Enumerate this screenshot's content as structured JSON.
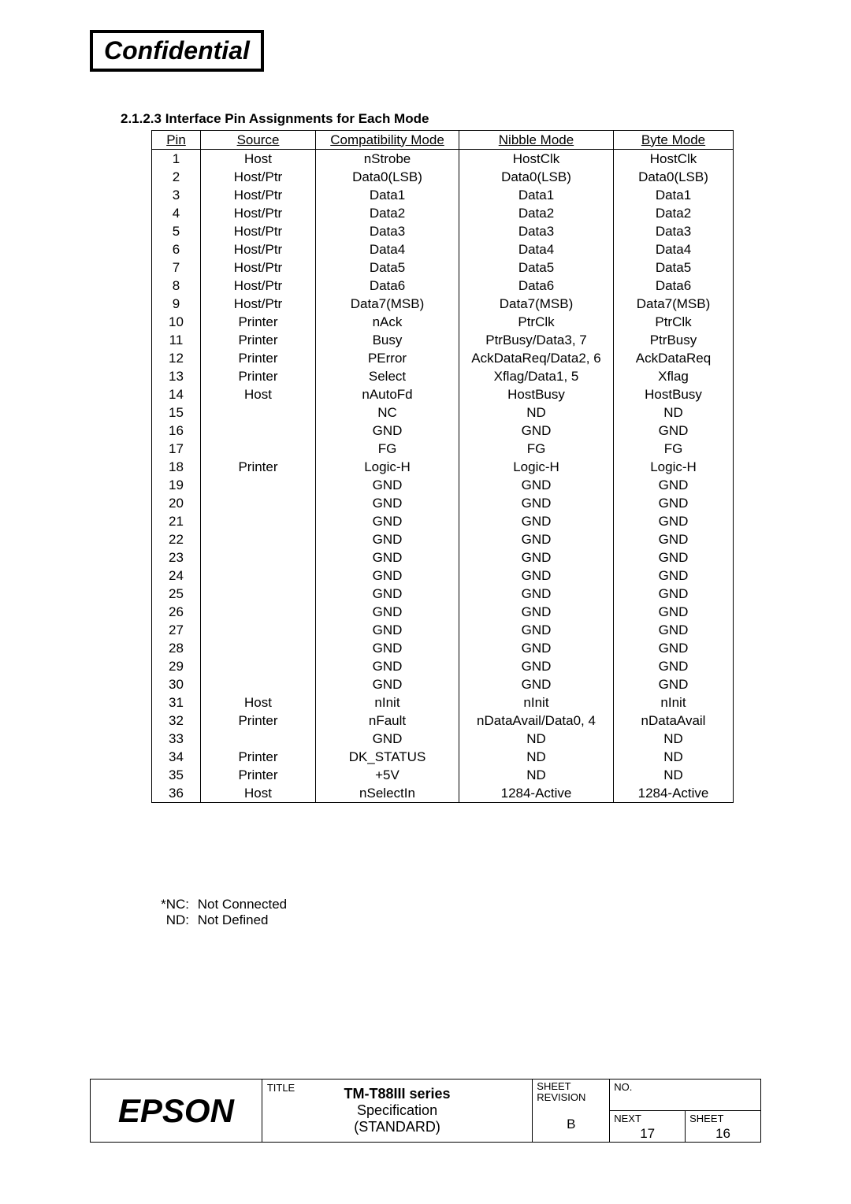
{
  "header": {
    "confidential": "Confidential"
  },
  "section": {
    "title": "2.1.2.3 Interface Pin Assignments for Each Mode"
  },
  "table": {
    "headers": [
      "Pin",
      "Source",
      "Compatibility Mode",
      "Nibble Mode",
      "Byte Mode"
    ],
    "rows": [
      [
        "1",
        "Host",
        "nStrobe",
        "HostClk",
        "HostClk"
      ],
      [
        "2",
        "Host/Ptr",
        "Data0(LSB)",
        "Data0(LSB)",
        "Data0(LSB)"
      ],
      [
        "3",
        "Host/Ptr",
        "Data1",
        "Data1",
        "Data1"
      ],
      [
        "4",
        "Host/Ptr",
        "Data2",
        "Data2",
        "Data2"
      ],
      [
        "5",
        "Host/Ptr",
        "Data3",
        "Data3",
        "Data3"
      ],
      [
        "6",
        "Host/Ptr",
        "Data4",
        "Data4",
        "Data4"
      ],
      [
        "7",
        "Host/Ptr",
        "Data5",
        "Data5",
        "Data5"
      ],
      [
        "8",
        "Host/Ptr",
        "Data6",
        "Data6",
        "Data6"
      ],
      [
        "9",
        "Host/Ptr",
        "Data7(MSB)",
        "Data7(MSB)",
        "Data7(MSB)"
      ],
      [
        "10",
        "Printer",
        "nAck",
        "PtrClk",
        "PtrClk"
      ],
      [
        "11",
        "Printer",
        "Busy",
        "PtrBusy/Data3, 7",
        "PtrBusy"
      ],
      [
        "12",
        "Printer",
        "PError",
        "AckDataReq/Data2, 6",
        "AckDataReq"
      ],
      [
        "13",
        "Printer",
        "Select",
        "Xflag/Data1, 5",
        "Xflag"
      ],
      [
        "14",
        "Host",
        "nAutoFd",
        "HostBusy",
        "HostBusy"
      ],
      [
        "15",
        "",
        "NC",
        "ND",
        "ND"
      ],
      [
        "16",
        "",
        "GND",
        "GND",
        "GND"
      ],
      [
        "17",
        "",
        "FG",
        "FG",
        "FG"
      ],
      [
        "18",
        "Printer",
        "Logic-H",
        "Logic-H",
        "Logic-H"
      ],
      [
        "19",
        "",
        "GND",
        "GND",
        "GND"
      ],
      [
        "20",
        "",
        "GND",
        "GND",
        "GND"
      ],
      [
        "21",
        "",
        "GND",
        "GND",
        "GND"
      ],
      [
        "22",
        "",
        "GND",
        "GND",
        "GND"
      ],
      [
        "23",
        "",
        "GND",
        "GND",
        "GND"
      ],
      [
        "24",
        "",
        "GND",
        "GND",
        "GND"
      ],
      [
        "25",
        "",
        "GND",
        "GND",
        "GND"
      ],
      [
        "26",
        "",
        "GND",
        "GND",
        "GND"
      ],
      [
        "27",
        "",
        "GND",
        "GND",
        "GND"
      ],
      [
        "28",
        "",
        "GND",
        "GND",
        "GND"
      ],
      [
        "29",
        "",
        "GND",
        "GND",
        "GND"
      ],
      [
        "30",
        "",
        "GND",
        "GND",
        "GND"
      ],
      [
        "31",
        "Host",
        "nInit",
        "nInit",
        "nInit"
      ],
      [
        "32",
        "Printer",
        "nFault",
        "nDataAvail/Data0, 4",
        "nDataAvail"
      ],
      [
        "33",
        "",
        "GND",
        "ND",
        "ND"
      ],
      [
        "34",
        "Printer",
        "DK_STATUS",
        "ND",
        "ND"
      ],
      [
        "35",
        "Printer",
        "+5V",
        "ND",
        "ND"
      ],
      [
        "36",
        "Host",
        "nSelectIn",
        "1284-Active",
        "1284-Active"
      ]
    ]
  },
  "footnotes": {
    "nc_label": "*NC:",
    "nc_text": "Not Connected",
    "nd_label": "ND:",
    "nd_text": "Not Defined"
  },
  "titleblock": {
    "logo": "EPSON",
    "title_label": "TITLE",
    "title_line1_prefix": "TM-T88",
    "title_line1_series": "III series",
    "title_line2": "Specification",
    "title_line3": "(STANDARD)",
    "sheet_rev_label": "SHEET REVISION",
    "revision": "B",
    "no_label": "NO.",
    "next_label": "NEXT",
    "next_value": "17",
    "sheet_label": "SHEET",
    "sheet_value": "16"
  }
}
